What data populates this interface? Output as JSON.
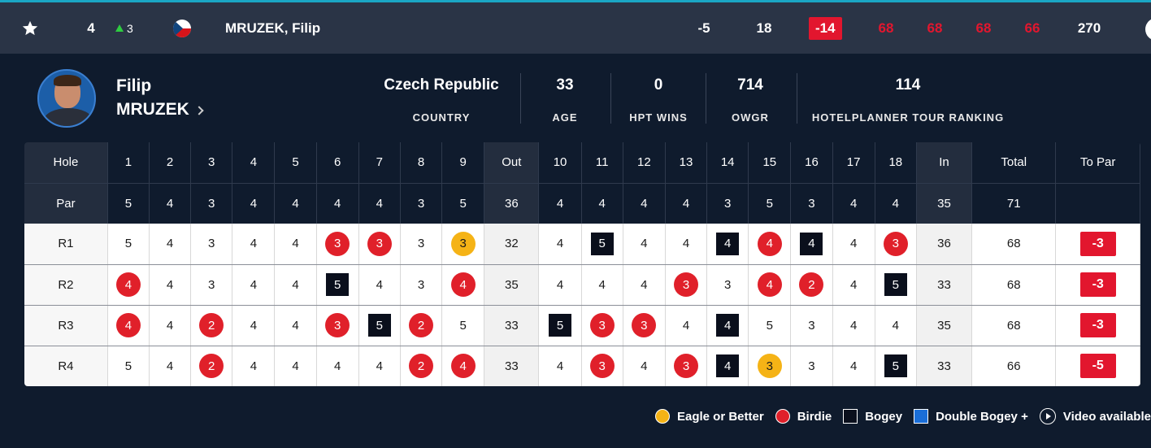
{
  "leaderboard_row": {
    "position": "4",
    "movement": "3",
    "player_name": "MRUZEK, Filip",
    "today": "-5",
    "thru": "18",
    "to_par": "-14",
    "rounds": [
      "68",
      "68",
      "68",
      "66"
    ],
    "total": "270",
    "colors": {
      "accent": "#1aa6c4",
      "movement_up": "#2ecc40",
      "under_par": "#e2162e"
    }
  },
  "player": {
    "first_name": "Filip",
    "last_name": "MRUZEK",
    "stats": [
      {
        "value": "Czech Republic",
        "label": "COUNTRY"
      },
      {
        "value": "33",
        "label": "AGE"
      },
      {
        "value": "0",
        "label": "HPT WINS"
      },
      {
        "value": "714",
        "label": "OWGR"
      },
      {
        "value": "114",
        "label": "HOTELPLANNER TOUR RANKING"
      }
    ]
  },
  "scorecard": {
    "hole_label": "Hole",
    "par_label": "Par",
    "holes": [
      "1",
      "2",
      "3",
      "4",
      "5",
      "6",
      "7",
      "8",
      "9",
      "Out",
      "10",
      "11",
      "12",
      "13",
      "14",
      "15",
      "16",
      "17",
      "18",
      "In",
      "Total",
      "To Par"
    ],
    "pars": [
      "5",
      "4",
      "3",
      "4",
      "4",
      "4",
      "4",
      "3",
      "5",
      "36",
      "4",
      "4",
      "4",
      "4",
      "3",
      "5",
      "3",
      "4",
      "4",
      "35",
      "71",
      ""
    ],
    "rounds": [
      {
        "label": "R1",
        "front": [
          [
            "5",
            ""
          ],
          [
            "4",
            ""
          ],
          [
            "3",
            ""
          ],
          [
            "4",
            ""
          ],
          [
            "4",
            ""
          ],
          [
            "3",
            "birdie"
          ],
          [
            "3",
            "birdie"
          ],
          [
            "3",
            ""
          ],
          [
            "3",
            "eagle"
          ]
        ],
        "out": "32",
        "back": [
          [
            "4",
            ""
          ],
          [
            "5",
            "bogey"
          ],
          [
            "4",
            ""
          ],
          [
            "4",
            ""
          ],
          [
            "4",
            "bogey"
          ],
          [
            "4",
            "birdie"
          ],
          [
            "4",
            "bogey"
          ],
          [
            "4",
            ""
          ],
          [
            "3",
            "birdie"
          ]
        ],
        "in": "36",
        "total": "68",
        "to_par": "-3"
      },
      {
        "label": "R2",
        "front": [
          [
            "4",
            "birdie"
          ],
          [
            "4",
            ""
          ],
          [
            "3",
            ""
          ],
          [
            "4",
            ""
          ],
          [
            "4",
            ""
          ],
          [
            "5",
            "bogey"
          ],
          [
            "4",
            ""
          ],
          [
            "3",
            ""
          ],
          [
            "4",
            "birdie"
          ]
        ],
        "out": "35",
        "back": [
          [
            "4",
            ""
          ],
          [
            "4",
            ""
          ],
          [
            "4",
            ""
          ],
          [
            "3",
            "birdie"
          ],
          [
            "3",
            ""
          ],
          [
            "4",
            "birdie"
          ],
          [
            "2",
            "birdie"
          ],
          [
            "4",
            ""
          ],
          [
            "5",
            "bogey"
          ]
        ],
        "in": "33",
        "total": "68",
        "to_par": "-3"
      },
      {
        "label": "R3",
        "front": [
          [
            "4",
            "birdie"
          ],
          [
            "4",
            ""
          ],
          [
            "2",
            "birdie"
          ],
          [
            "4",
            ""
          ],
          [
            "4",
            ""
          ],
          [
            "3",
            "birdie"
          ],
          [
            "5",
            "bogey"
          ],
          [
            "2",
            "birdie"
          ],
          [
            "5",
            ""
          ]
        ],
        "out": "33",
        "back": [
          [
            "5",
            "bogey"
          ],
          [
            "3",
            "birdie"
          ],
          [
            "3",
            "birdie"
          ],
          [
            "4",
            ""
          ],
          [
            "4",
            "bogey"
          ],
          [
            "5",
            ""
          ],
          [
            "3",
            ""
          ],
          [
            "4",
            ""
          ],
          [
            "4",
            ""
          ]
        ],
        "in": "35",
        "total": "68",
        "to_par": "-3"
      },
      {
        "label": "R4",
        "front": [
          [
            "5",
            ""
          ],
          [
            "4",
            ""
          ],
          [
            "2",
            "birdie"
          ],
          [
            "4",
            ""
          ],
          [
            "4",
            ""
          ],
          [
            "4",
            ""
          ],
          [
            "4",
            ""
          ],
          [
            "2",
            "birdie"
          ],
          [
            "4",
            "birdie"
          ]
        ],
        "out": "33",
        "back": [
          [
            "4",
            ""
          ],
          [
            "3",
            "birdie"
          ],
          [
            "4",
            ""
          ],
          [
            "3",
            "birdie"
          ],
          [
            "4",
            "bogey"
          ],
          [
            "3",
            "eagle"
          ],
          [
            "3",
            ""
          ],
          [
            "4",
            ""
          ],
          [
            "5",
            "bogey"
          ]
        ],
        "in": "33",
        "total": "66",
        "to_par": "-5"
      }
    ]
  },
  "legend": [
    {
      "label": "Eagle or Better",
      "marker": "dot",
      "color": "#f5b316"
    },
    {
      "label": "Birdie",
      "marker": "dot",
      "color": "#e0202a"
    },
    {
      "label": "Bogey",
      "marker": "square",
      "color": "#0a0f1c"
    },
    {
      "label": "Double Bogey +",
      "marker": "square",
      "color": "#1a6ed8"
    },
    {
      "label": "Video available",
      "marker": "play-icon",
      "color": "#ffffff"
    }
  ]
}
